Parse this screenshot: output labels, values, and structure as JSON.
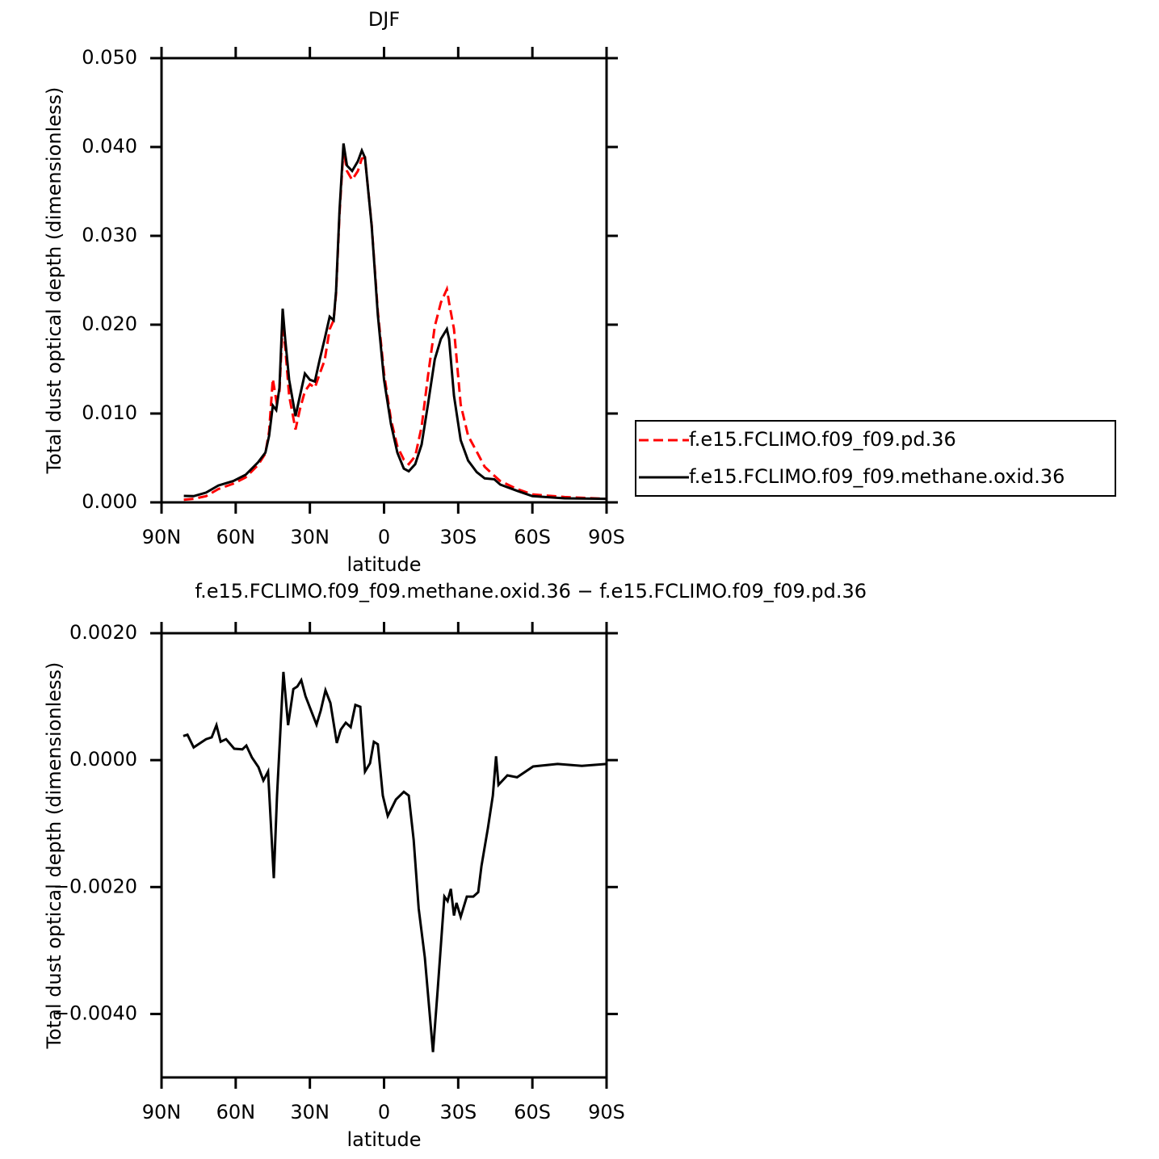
{
  "chart_data": [
    {
      "type": "line",
      "title": "DJF",
      "x_label": "latitude",
      "y_label": "Total dust optical depth (dimensionless)",
      "xlim": [
        90,
        -90
      ],
      "xticks": [
        {
          "value": 90,
          "label": "90N"
        },
        {
          "value": 60,
          "label": "60N"
        },
        {
          "value": 30,
          "label": "30N"
        },
        0,
        {
          "value": -30,
          "label": "30S"
        },
        {
          "value": -60,
          "label": "60S"
        },
        {
          "value": -90,
          "label": "90S"
        }
      ],
      "ylim": [
        0,
        0.05
      ],
      "yticks": [
        {
          "value": 0,
          "label": "0.000"
        },
        {
          "value": 0.01,
          "label": "0.010"
        },
        {
          "value": 0.02,
          "label": "0.020"
        },
        {
          "value": 0.03,
          "label": "0.030"
        },
        {
          "value": 0.04,
          "label": "0.040"
        },
        {
          "value": 0.05,
          "label": "0.050"
        }
      ],
      "legend": "right",
      "x": [
        81,
        77,
        72,
        67,
        61,
        56,
        51,
        48,
        46.5,
        45,
        43.6,
        42.3,
        41,
        40,
        38.4,
        35.8,
        34,
        32,
        30,
        28,
        26,
        24,
        22,
        20.4,
        19.4,
        18,
        16.4,
        15,
        12.9,
        10.6,
        9,
        7.7,
        5,
        2.5,
        0,
        -2.8,
        -5.4,
        -8,
        -10,
        -12.6,
        -15.2,
        -17.8,
        -20.5,
        -23,
        -25.4,
        -26.3,
        -28.3,
        -31,
        -34,
        -37.5,
        -40.7,
        -44.6,
        -47,
        -53.8,
        -60,
        -73,
        -90
      ],
      "series": [
        {
          "name": "f.e15.FCLIMO.f09_f09.pd.36",
          "color": "#ff0000",
          "dash": "dashed",
          "values": [
            0.0003,
            0.0004,
            0.0007,
            0.0015,
            0.0021,
            0.0028,
            0.0042,
            0.0055,
            0.008,
            0.0139,
            0.0115,
            0.0125,
            0.0202,
            0.0175,
            0.012,
            0.0082,
            0.0105,
            0.0125,
            0.0133,
            0.0129,
            0.0145,
            0.016,
            0.0195,
            0.0205,
            0.0235,
            0.0325,
            0.0398,
            0.0373,
            0.0363,
            0.0373,
            0.0387,
            0.0388,
            0.0312,
            0.0215,
            0.0145,
            0.0093,
            0.0063,
            0.0048,
            0.0043,
            0.0052,
            0.0085,
            0.0143,
            0.0198,
            0.0225,
            0.024,
            0.0225,
            0.0195,
            0.011,
            0.0075,
            0.0057,
            0.004,
            0.003,
            0.0024,
            0.0015,
            0.0009,
            0.0006,
            0.0004
          ]
        },
        {
          "name": "f.e15.FCLIMO.f09_f09.methane.oxid.36",
          "color": "#000000",
          "dash": "solid",
          "values": [
            0.00073,
            0.0007,
            0.0011,
            0.0019,
            0.0024,
            0.0031,
            0.0045,
            0.0056,
            0.0075,
            0.0109,
            0.0104,
            0.0129,
            0.0218,
            0.0184,
            0.0138,
            0.0097,
            0.012,
            0.0145,
            0.0138,
            0.0136,
            0.0161,
            0.0184,
            0.0209,
            0.0205,
            0.0238,
            0.0329,
            0.0404,
            0.0379,
            0.0373,
            0.0384,
            0.0396,
            0.0388,
            0.0311,
            0.0211,
            0.0138,
            0.0088,
            0.0056,
            0.0038,
            0.0035,
            0.0043,
            0.0065,
            0.0111,
            0.0161,
            0.0184,
            0.0195,
            0.0184,
            0.012,
            0.007,
            0.0047,
            0.0034,
            0.0027,
            0.0026,
            0.002,
            0.0013,
            0.0007,
            0.00045,
            0.0004
          ]
        }
      ]
    },
    {
      "type": "line",
      "title": "f.e15.FCLIMO.f09_f09.methane.oxid.36 − f.e15.FCLIMO.f09_f09.pd.36",
      "x_label": "latitude",
      "y_label": "Total dust optical depth (dimensionless)",
      "xlim": [
        90,
        -90
      ],
      "xticks": [
        {
          "value": 90,
          "label": "90N"
        },
        {
          "value": 60,
          "label": "60N"
        },
        {
          "value": 30,
          "label": "30N"
        },
        0,
        {
          "value": -30,
          "label": "30S"
        },
        {
          "value": -60,
          "label": "60S"
        },
        {
          "value": -90,
          "label": "90S"
        }
      ],
      "ylim": [
        -0.005,
        0.002
      ],
      "yticks": [
        {
          "value": -0.004,
          "label": "−0.0040"
        },
        {
          "value": -0.002,
          "label": "−0.0020"
        },
        {
          "value": 0,
          "label": "0.0000"
        },
        {
          "value": 0.002,
          "label": "0.0020"
        }
      ],
      "color": "#000000",
      "x": [
        81.2,
        79.5,
        77,
        74.3,
        72,
        69.7,
        67.8,
        66.1,
        63.9,
        60.6,
        57.3,
        55.7,
        53.4,
        50.8,
        48.8,
        46.9,
        44.6,
        43.3,
        40.7,
        38.8,
        36.7,
        35.1,
        33.5,
        31.8,
        29.5,
        27.3,
        25.6,
        23.7,
        21.7,
        19.1,
        17.5,
        15.5,
        13.5,
        11.6,
        9.6,
        7.7,
        5.7,
        4.1,
        2.5,
        0.5,
        -1.5,
        -4.8,
        -8,
        -10,
        -12,
        -14,
        -16.5,
        -19.8,
        -21.7,
        -24.4,
        -25.7,
        -27,
        -28.3,
        -29.3,
        -31,
        -33.5,
        -36.1,
        -38.1,
        -39.4,
        -42,
        -44,
        -45.3,
        -46.3,
        -49.9,
        -53.8,
        -60.3,
        -70.2,
        -80,
        -90
      ],
      "values": [
        0.00038,
        0.0004,
        0.0002,
        0.00027,
        0.00033,
        0.00036,
        0.00055,
        0.00029,
        0.00033,
        0.00018,
        0.00017,
        0.00023,
        4e-05,
        -0.00011,
        -0.00032,
        -0.00018,
        -0.00186,
        -0.00056,
        0.00139,
        0.00055,
        0.00112,
        0.00116,
        0.00126,
        0.00101,
        0.00078,
        0.00056,
        0.00078,
        0.0011,
        0.0009,
        0.00027,
        0.00048,
        0.00059,
        0.00052,
        0.00087,
        0.00084,
        -0.00018,
        -5e-05,
        0.00029,
        0.00025,
        -0.00056,
        -0.00088,
        -0.00062,
        -0.0005,
        -0.00056,
        -0.00126,
        -0.00234,
        -0.00311,
        -0.0046,
        -0.00362,
        -0.00215,
        -0.00222,
        -0.00203,
        -0.00245,
        -0.00225,
        -0.00247,
        -0.00215,
        -0.00215,
        -0.00208,
        -0.00167,
        -0.00107,
        -0.00056,
        6e-05,
        -0.00039,
        -0.00024,
        -0.00027,
        -0.0001,
        -6e-05,
        -9e-05,
        -6e-05
      ]
    }
  ]
}
